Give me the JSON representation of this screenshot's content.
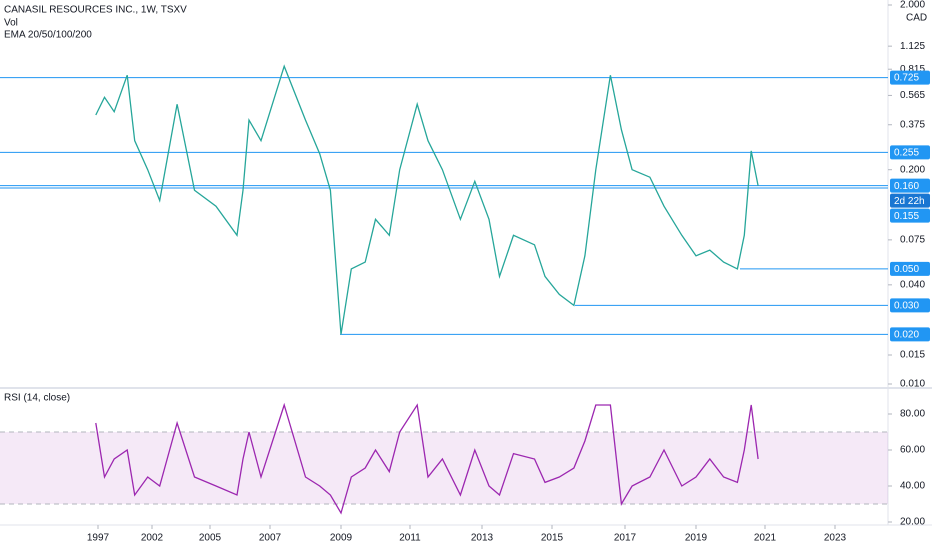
{
  "chart_data": [
    {
      "type": "line",
      "log": true,
      "title": "CANASIL RESOURCES INC., 1W, TSXV",
      "indicators": [
        "Vol",
        "EMA 20/50/100/200"
      ],
      "currency": "CAD",
      "countdown": "2d 22h",
      "color": "#26a69a",
      "x": [
        1996.8,
        1997.6,
        1998.5,
        1999.7,
        2000.4,
        2001.6,
        2002.4,
        2003.3,
        2004.2,
        2005.2,
        2005.9,
        2006.1,
        2006.3,
        2006.7,
        2007.4,
        2008.0,
        2008.4,
        2008.7,
        2009.0,
        2009.3,
        2009.7,
        2010.0,
        2010.4,
        2010.7,
        2011.2,
        2011.5,
        2011.9,
        2012.4,
        2012.8,
        2013.2,
        2013.5,
        2013.9,
        2014.5,
        2014.8,
        2015.2,
        2015.6,
        2015.9,
        2016.2,
        2016.6,
        2016.9,
        2017.2,
        2017.7,
        2018.1,
        2018.6,
        2019.0,
        2019.4,
        2019.8,
        2020.2,
        2020.4,
        2020.6,
        2020.8
      ],
      "values": [
        0.43,
        0.55,
        0.45,
        0.75,
        0.3,
        0.2,
        0.13,
        0.5,
        0.15,
        0.12,
        0.08,
        0.15,
        0.4,
        0.3,
        0.85,
        0.4,
        0.25,
        0.15,
        0.02,
        0.05,
        0.055,
        0.1,
        0.08,
        0.2,
        0.5,
        0.3,
        0.2,
        0.1,
        0.17,
        0.1,
        0.045,
        0.08,
        0.07,
        0.045,
        0.035,
        0.03,
        0.06,
        0.2,
        0.75,
        0.35,
        0.2,
        0.18,
        0.12,
        0.08,
        0.06,
        0.065,
        0.055,
        0.05,
        0.08,
        0.26,
        0.16
      ],
      "ylim": [
        0.01,
        2.0
      ],
      "yticks": [
        {
          "value": 2.0,
          "label": "2.000"
        },
        {
          "value": 1.125,
          "label": "1.125"
        },
        {
          "value": 0.815,
          "label": "0.815"
        },
        {
          "value": 0.565,
          "label": "0.565"
        },
        {
          "value": 0.375,
          "label": "0.375"
        },
        {
          "value": 0.2,
          "label": "0.200"
        },
        {
          "value": 0.075,
          "label": "0.075"
        },
        {
          "value": 0.04,
          "label": "0.040"
        },
        {
          "value": 0.015,
          "label": "0.015"
        },
        {
          "value": 0.01,
          "label": "0.010"
        }
      ],
      "xticks": [
        1997,
        2002,
        2005,
        2007,
        2009,
        2011,
        2013,
        2015,
        2017,
        2019,
        2021,
        2023
      ],
      "levels": [
        {
          "value": 0.725,
          "label": "0.725"
        },
        {
          "value": 0.255,
          "label": "0.255"
        },
        {
          "value": 0.16,
          "label": "0.160"
        },
        {
          "value": 0.155,
          "label": "0.155"
        },
        {
          "value": 0.05,
          "label": "0.050"
        },
        {
          "value": 0.03,
          "label": "0.030"
        },
        {
          "value": 0.02,
          "label": "0.020"
        }
      ]
    },
    {
      "type": "line",
      "title": "RSI (14, close)",
      "color": "#9c27b0",
      "x": [
        1996.8,
        1997.6,
        1998.5,
        1999.7,
        2000.4,
        2001.6,
        2002.4,
        2003.3,
        2004.2,
        2005.2,
        2005.9,
        2006.1,
        2006.3,
        2006.7,
        2007.4,
        2008.0,
        2008.4,
        2008.7,
        2009.0,
        2009.3,
        2009.7,
        2010.0,
        2010.4,
        2010.7,
        2011.2,
        2011.5,
        2011.9,
        2012.4,
        2012.8,
        2013.2,
        2013.5,
        2013.9,
        2014.5,
        2014.8,
        2015.2,
        2015.6,
        2015.9,
        2016.2,
        2016.6,
        2016.9,
        2017.2,
        2017.7,
        2018.1,
        2018.6,
        2019.0,
        2019.4,
        2019.8,
        2020.2,
        2020.4,
        2020.6,
        2020.8
      ],
      "values": [
        75,
        45,
        55,
        60,
        35,
        45,
        40,
        75,
        45,
        40,
        35,
        55,
        70,
        45,
        85,
        45,
        40,
        35,
        25,
        45,
        50,
        60,
        48,
        70,
        85,
        45,
        55,
        35,
        60,
        40,
        35,
        58,
        55,
        42,
        45,
        50,
        65,
        85,
        85,
        30,
        40,
        45,
        60,
        40,
        45,
        55,
        45,
        42,
        60,
        85,
        55
      ],
      "ylim": [
        20,
        90
      ],
      "yticks": [
        {
          "value": 80,
          "label": "80.00"
        },
        {
          "value": 60,
          "label": "60.00"
        },
        {
          "value": 40,
          "label": "40.00"
        },
        {
          "value": 20,
          "label": "20.00"
        }
      ],
      "band": [
        30,
        70
      ]
    }
  ]
}
